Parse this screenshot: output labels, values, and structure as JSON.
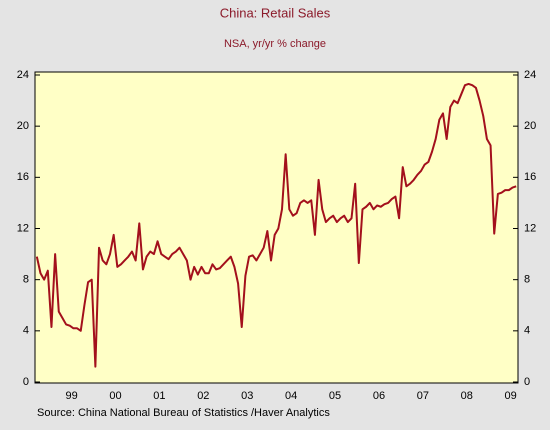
{
  "chart_data": {
    "type": "line",
    "title": "China: Retail Sales",
    "subtitle": "NSA, yr/yr % change",
    "source": "Source:  China National Bureau of Statistics /Haver Analytics",
    "color": "#a3101c",
    "categories": [
      null,
      null,
      null,
      null,
      null,
      null,
      null,
      null,
      null,
      null,
      "99",
      null,
      null,
      null,
      null,
      null,
      null,
      null,
      null,
      null,
      null,
      null,
      "00",
      null,
      null,
      null,
      null,
      null,
      null,
      null,
      null,
      null,
      null,
      null,
      "01",
      null,
      null,
      null,
      null,
      null,
      null,
      null,
      null,
      null,
      null,
      null,
      "02",
      null,
      null,
      null,
      null,
      null,
      null,
      null,
      null,
      null,
      null,
      null,
      "03",
      null,
      null,
      null,
      null,
      null,
      null,
      null,
      null,
      null,
      null,
      null,
      "04",
      null,
      null,
      null,
      null,
      null,
      null,
      null,
      null,
      null,
      null,
      null,
      "05",
      null,
      null,
      null,
      null,
      null,
      null,
      null,
      null,
      null,
      null,
      null,
      "06",
      null,
      null,
      null,
      null,
      null,
      null,
      null,
      null,
      null,
      null,
      null,
      "07",
      null,
      null,
      null,
      null,
      null,
      null,
      null,
      null,
      null,
      null,
      null,
      "08",
      null,
      null,
      null,
      null,
      null,
      null,
      null,
      null,
      null,
      null,
      null,
      "09",
      null
    ],
    "values": [
      9.8,
      8.5,
      8.0,
      8.7,
      4.3,
      10.0,
      5.5,
      5.0,
      4.5,
      4.4,
      4.2,
      4.2,
      4.0,
      6.0,
      7.8,
      8.0,
      1.2,
      10.5,
      9.5,
      9.2,
      10.0,
      11.5,
      9.0,
      9.2,
      9.5,
      9.8,
      10.2,
      9.5,
      12.4,
      8.8,
      9.8,
      10.2,
      10.0,
      11.0,
      10.0,
      9.8,
      9.6,
      10.0,
      10.2,
      10.5,
      10.0,
      9.5,
      8.0,
      9.0,
      8.4,
      9.0,
      8.5,
      8.5,
      9.2,
      8.8,
      8.9,
      9.2,
      9.5,
      9.8,
      9.0,
      7.7,
      4.3,
      8.3,
      9.8,
      9.9,
      9.5,
      10.0,
      10.5,
      11.8,
      9.5,
      11.5,
      12.0,
      13.5,
      17.8,
      13.5,
      13.0,
      13.2,
      14.0,
      14.2,
      14.0,
      14.2,
      11.5,
      15.8,
      13.5,
      12.5,
      12.8,
      13.0,
      12.5,
      12.8,
      13.0,
      12.5,
      12.8,
      15.5,
      9.3,
      13.5,
      13.7,
      14.0,
      13.5,
      13.8,
      13.7,
      13.9,
      14.0,
      14.3,
      14.5,
      12.8,
      16.8,
      15.3,
      15.5,
      15.8,
      16.2,
      16.5,
      17.0,
      17.2,
      18.0,
      19.0,
      20.5,
      21.0,
      19.0,
      21.5,
      22.0,
      21.8,
      22.5,
      23.2,
      23.3,
      23.2,
      23.0,
      22.0,
      20.8,
      19.0,
      18.5,
      11.6,
      14.7,
      14.8,
      15.0,
      15.0,
      15.2,
      15.3
    ],
    "ylim": [
      0,
      24
    ],
    "yticks": [
      0,
      4,
      8,
      12,
      16,
      20,
      24
    ]
  }
}
